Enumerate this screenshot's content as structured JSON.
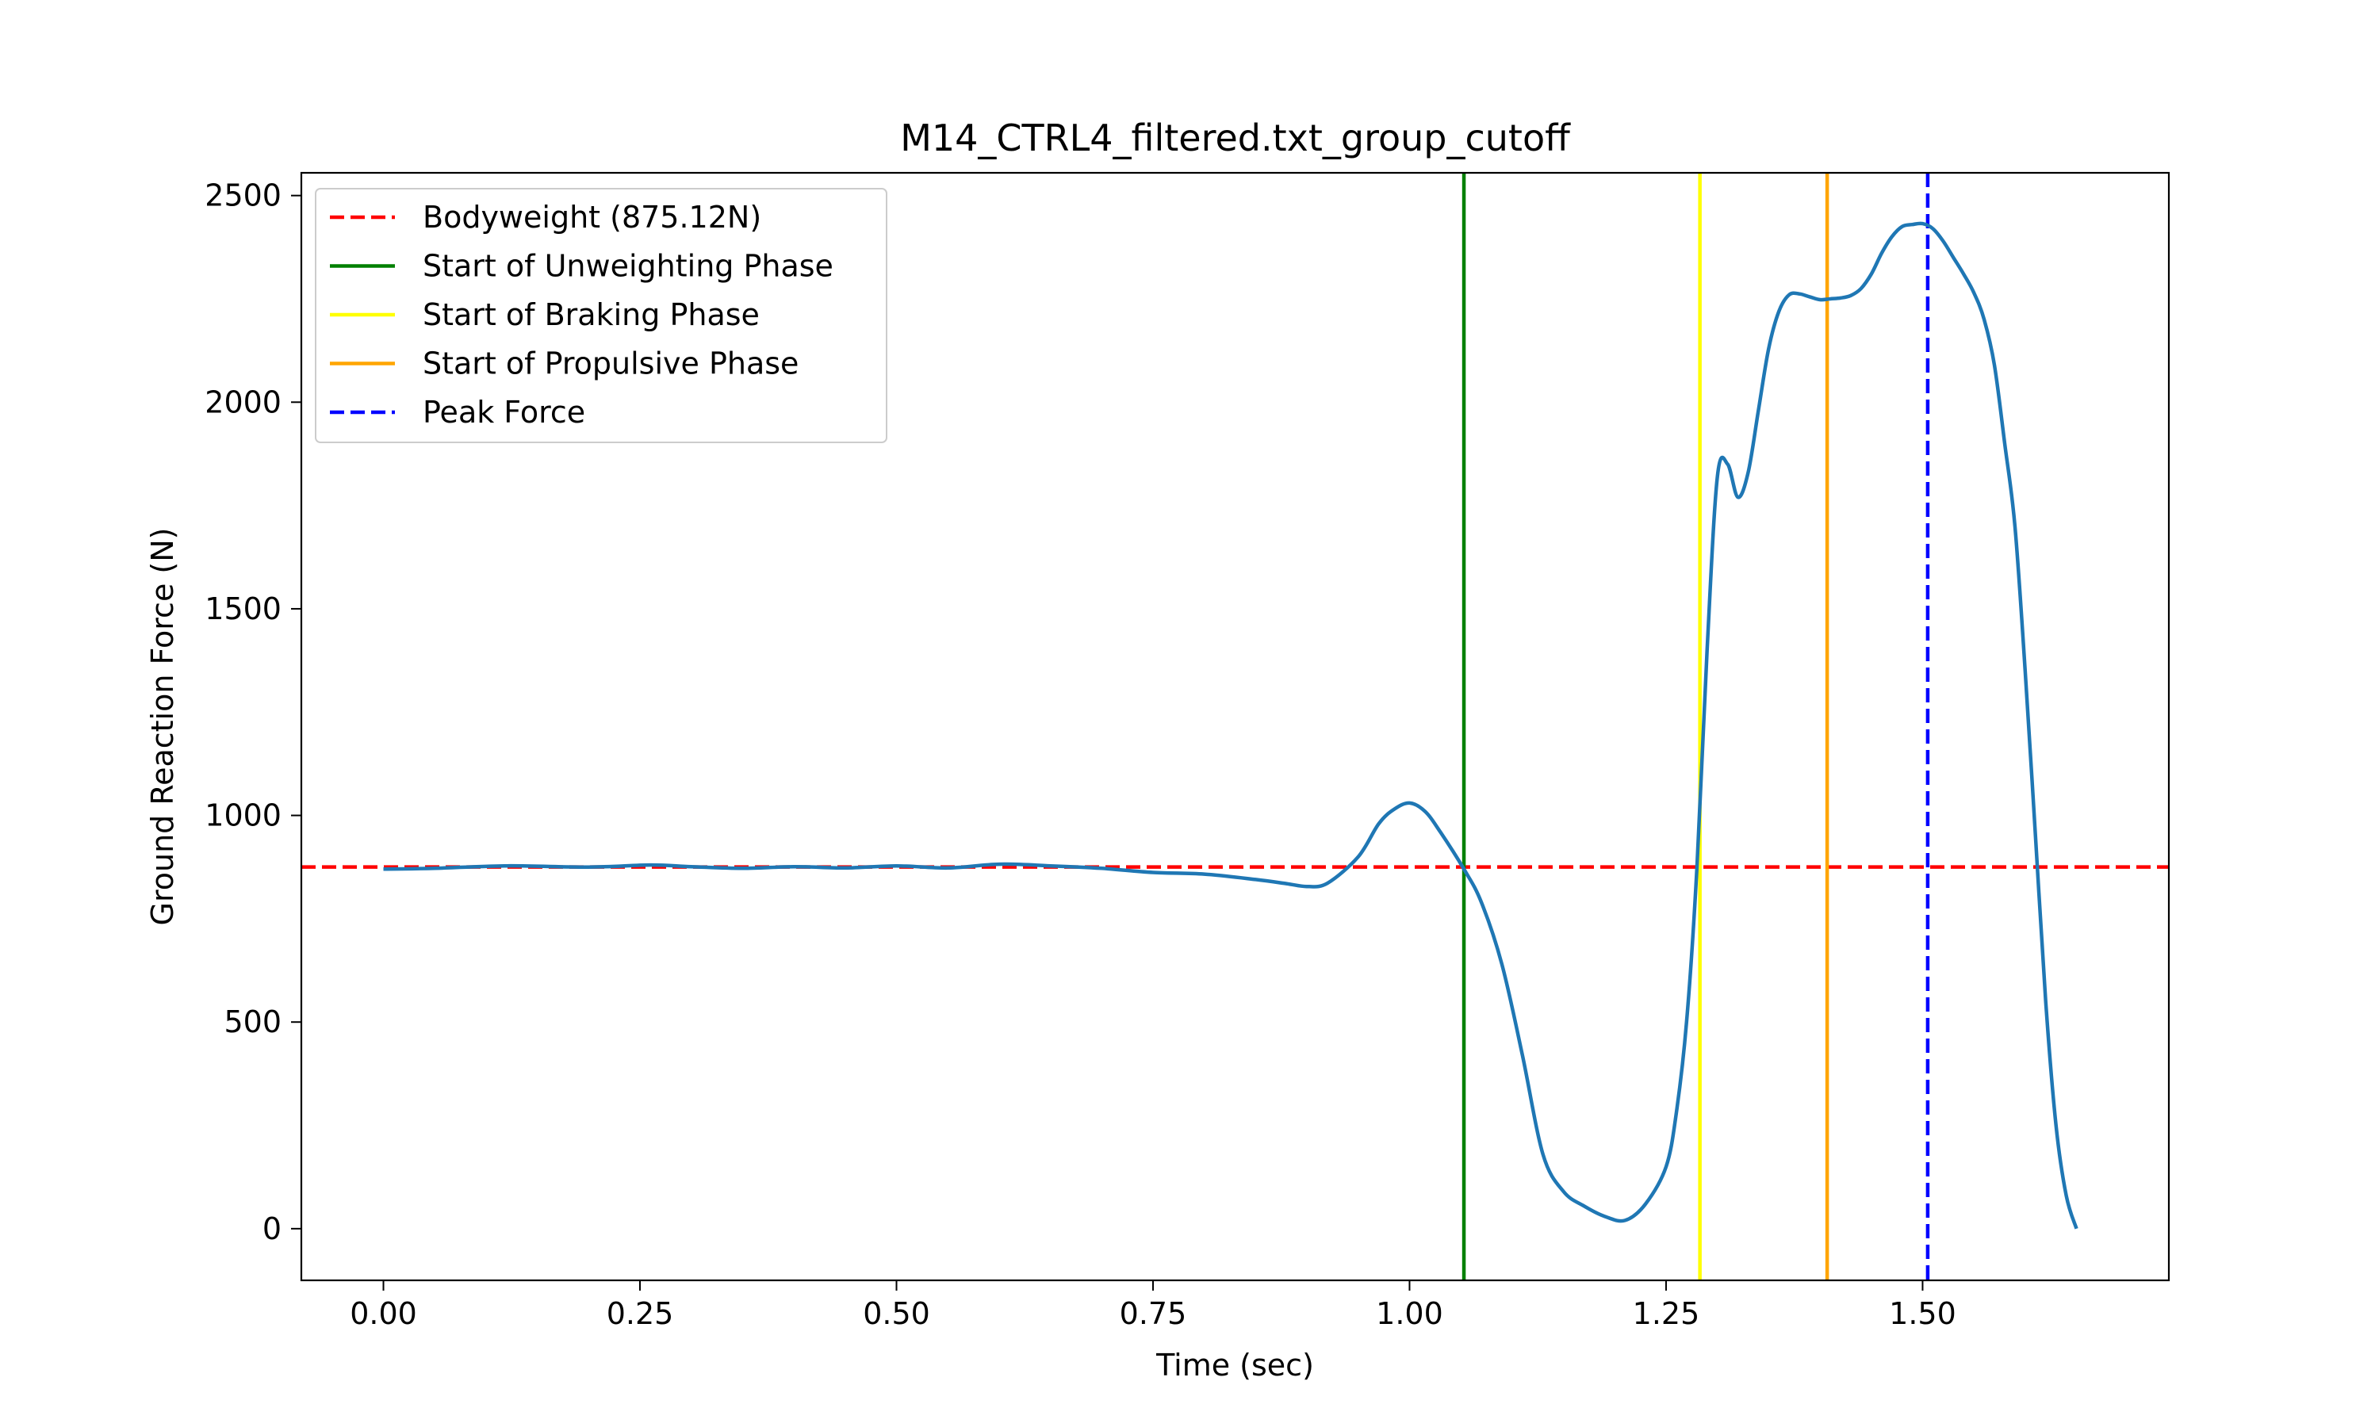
{
  "chart_data": {
    "type": "line",
    "title": "M14_CTRL4_filtered.txt_group_cutoff",
    "xlabel": "Time (sec)",
    "ylabel": "Ground Reaction Force (N)",
    "xlim": [
      -0.08,
      1.74
    ],
    "ylim": [
      -125,
      2555
    ],
    "x_ticks": [
      0.0,
      0.25,
      0.5,
      0.75,
      1.0,
      1.25,
      1.5
    ],
    "x_tick_labels": [
      "0.00",
      "0.25",
      "0.50",
      "0.75",
      "1.00",
      "1.25",
      "1.50"
    ],
    "y_ticks": [
      0,
      500,
      1000,
      1500,
      2000,
      2500
    ],
    "y_tick_labels": [
      "0",
      "500",
      "1000",
      "1500",
      "2000",
      "2500"
    ],
    "grid": false,
    "legend_position": "upper-left",
    "legend": [
      {
        "label": "Bodyweight (875.12N)",
        "color": "#ff0000",
        "style": "dashed"
      },
      {
        "label": "Start of Unweighting Phase",
        "color": "#008000",
        "style": "solid"
      },
      {
        "label": "Start of Braking Phase",
        "color": "#ffff00",
        "style": "solid"
      },
      {
        "label": "Start of Propulsive Phase",
        "color": "#ffa500",
        "style": "solid"
      },
      {
        "label": "Peak Force",
        "color": "#0000ff",
        "style": "dashed"
      }
    ],
    "bodyweight": 875.12,
    "markers": {
      "unweighting_start": 1.053,
      "braking_start": 1.283,
      "propulsive_start": 1.407,
      "peak_force": 1.505
    },
    "series": [
      {
        "color": "#1f77b4",
        "x": [
          0.0,
          0.05,
          0.12,
          0.2,
          0.26,
          0.3,
          0.35,
          0.4,
          0.45,
          0.5,
          0.55,
          0.6,
          0.65,
          0.7,
          0.75,
          0.8,
          0.85,
          0.88,
          0.9,
          0.92,
          0.95,
          0.97,
          0.985,
          1.0,
          1.015,
          1.03,
          1.053,
          1.07,
          1.09,
          1.11,
          1.13,
          1.15,
          1.17,
          1.19,
          1.21,
          1.23,
          1.25,
          1.26,
          1.27,
          1.28,
          1.29,
          1.3,
          1.31,
          1.32,
          1.33,
          1.34,
          1.35,
          1.36,
          1.37,
          1.38,
          1.39,
          1.4,
          1.41,
          1.42,
          1.43,
          1.44,
          1.45,
          1.46,
          1.47,
          1.48,
          1.49,
          1.5,
          1.51,
          1.52,
          1.53,
          1.54,
          1.55,
          1.56,
          1.57,
          1.58,
          1.59,
          1.6,
          1.61,
          1.62,
          1.63,
          1.64,
          1.65
        ],
        "y": [
          870,
          872,
          878,
          875,
          880,
          876,
          872,
          876,
          873,
          878,
          873,
          882,
          878,
          872,
          862,
          858,
          845,
          835,
          828,
          836,
          900,
          980,
          1015,
          1030,
          1010,
          960,
          870,
          790,
          640,
          420,
          180,
          90,
          55,
          30,
          20,
          60,
          150,
          280,
          500,
          870,
          1400,
          1820,
          1850,
          1770,
          1830,
          1980,
          2130,
          2220,
          2260,
          2262,
          2255,
          2248,
          2250,
          2252,
          2258,
          2275,
          2310,
          2360,
          2400,
          2425,
          2430,
          2432,
          2420,
          2390,
          2350,
          2310,
          2265,
          2200,
          2090,
          1900,
          1700,
          1350,
          950,
          550,
          250,
          80,
          0
        ]
      }
    ]
  }
}
